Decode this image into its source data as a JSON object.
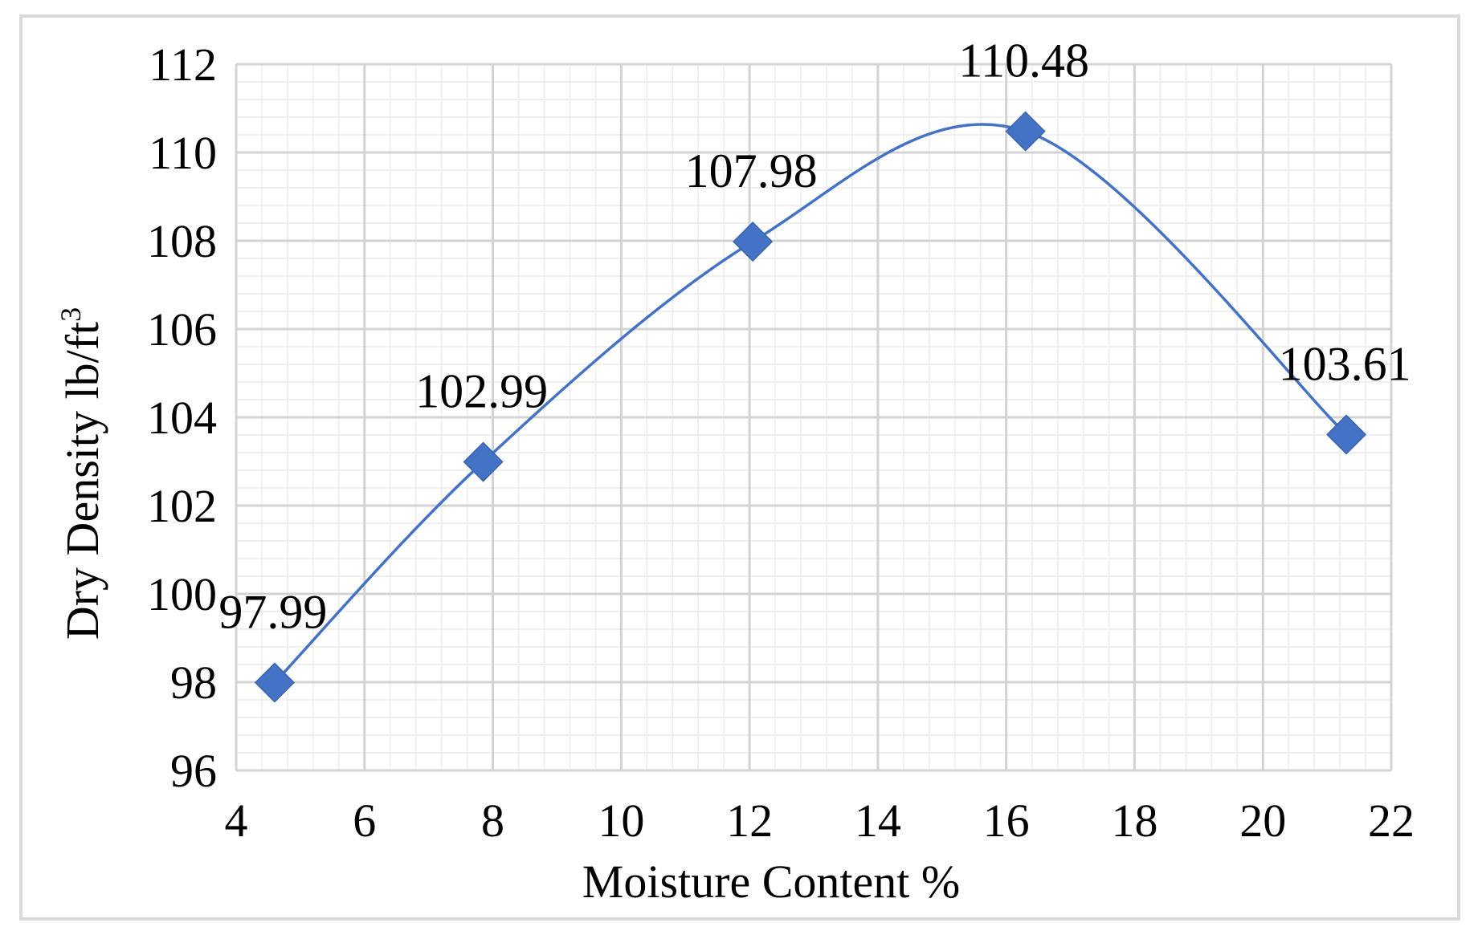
{
  "chart_data": {
    "type": "scatter",
    "title": "",
    "xlabel": "Moisture Content %",
    "ylabel": "Dry  Density lb/ft",
    "ylabel_superscript": "3",
    "xlim": [
      4,
      22
    ],
    "ylim": [
      96,
      112
    ],
    "xticks": [
      4,
      6,
      8,
      10,
      12,
      14,
      16,
      18,
      20,
      22
    ],
    "yticks": [
      96,
      98,
      100,
      102,
      104,
      106,
      108,
      110,
      112
    ],
    "grid": true,
    "minor_grid": true,
    "smooth_line": true,
    "series": [
      {
        "x": [
          4.6,
          7.85,
          12.05,
          16.3,
          21.3
        ],
        "y": [
          97.99,
          102.99,
          107.98,
          110.48,
          103.61
        ],
        "labels": [
          "97.99",
          "102.99",
          "107.98",
          "110.48",
          "103.61"
        ],
        "marker": "diamond",
        "color": "#4472C4"
      }
    ]
  }
}
